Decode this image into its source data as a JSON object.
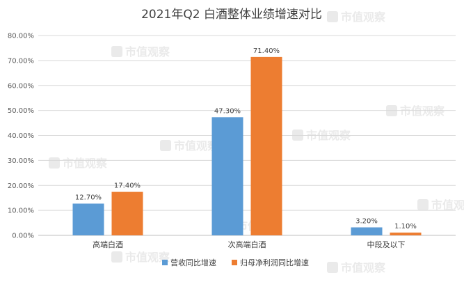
{
  "chart_data": {
    "type": "bar",
    "title": "2021年Q2  白酒整体业绩增速对比",
    "categories": [
      "高端白酒",
      "次高端白酒",
      "中段及以下"
    ],
    "series": [
      {
        "name": "营收同比增速",
        "color": "#5B9BD5",
        "values": [
          12.7,
          47.3,
          3.2
        ],
        "labels": [
          "12.70%",
          "47.30%",
          "3.20%"
        ]
      },
      {
        "name": "归母净利润同比增速",
        "color": "#ED7D31",
        "values": [
          17.4,
          71.4,
          1.1
        ],
        "labels": [
          "17.40%",
          "71.40%",
          "1.10%"
        ]
      }
    ],
    "ylim": [
      0,
      80
    ],
    "yticks": [
      0,
      10,
      20,
      30,
      40,
      50,
      60,
      70,
      80
    ],
    "ytick_labels": [
      "0.00%",
      "10.00%",
      "20.00%",
      "30.00%",
      "40.00%",
      "50.00%",
      "60.00%",
      "70.00%",
      "80.00%"
    ],
    "xlabel": "",
    "ylabel": "",
    "grid": true,
    "legend_position": "bottom"
  },
  "watermark": {
    "text": "市值观察",
    "color": "#d9d9d9"
  }
}
